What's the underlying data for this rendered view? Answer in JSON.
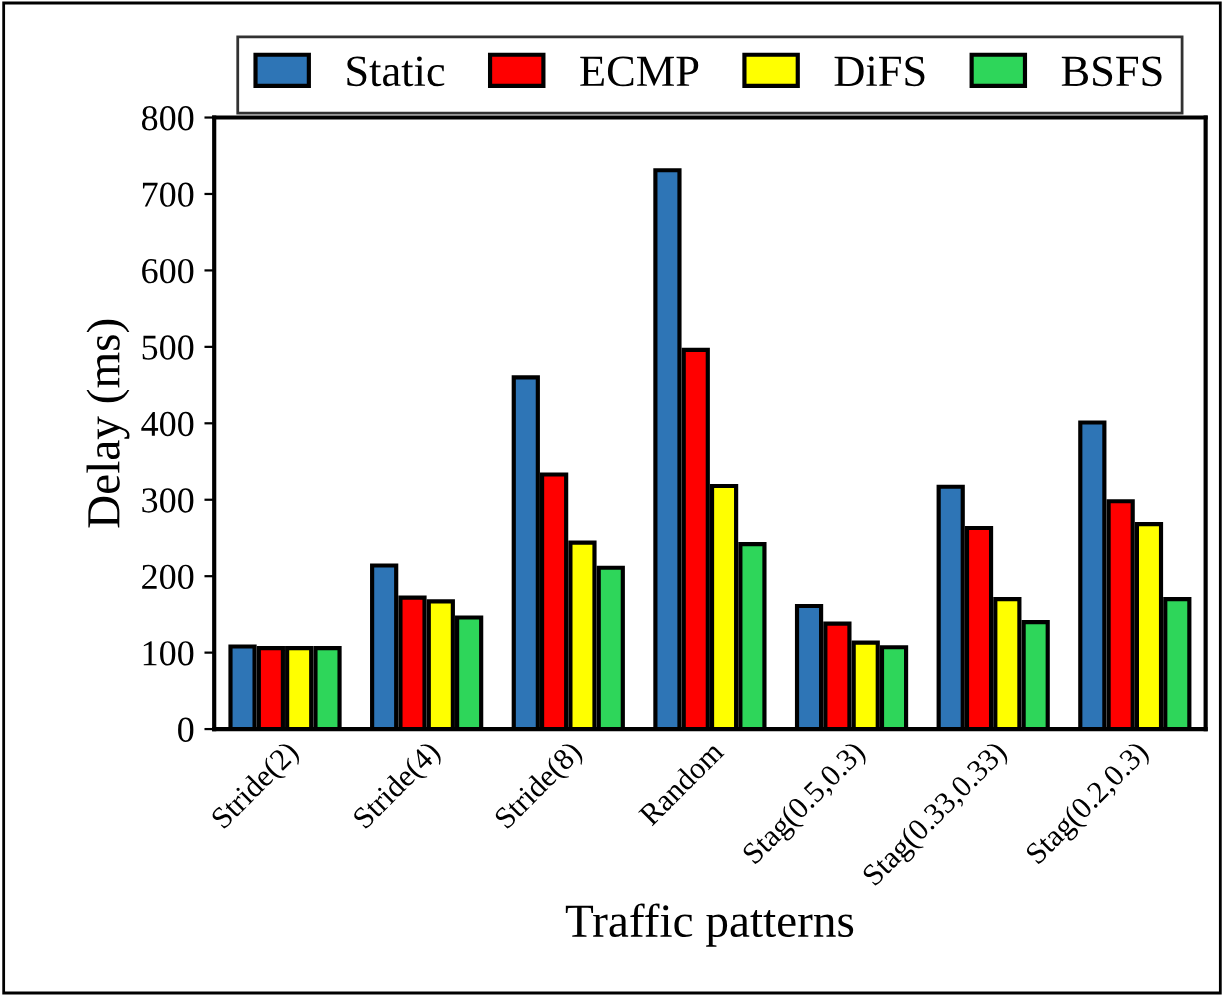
{
  "chart_data": {
    "type": "bar",
    "xlabel": "Traffic patterns",
    "ylabel": "Delay (ms)",
    "categories": [
      "Stride(2)",
      "Stride(4)",
      "Stride(8)",
      "Random",
      "Stag(0.5,0.3)",
      "Stag(0.33,0.33)",
      "Stag(0.2,0.3)"
    ],
    "series": [
      {
        "name": "Static",
        "color": "#2e75b6",
        "values": [
          108,
          214,
          460,
          731,
          161,
          317,
          401
        ]
      },
      {
        "name": "ECMP",
        "color": "#ff0000",
        "values": [
          106,
          172,
          333,
          496,
          138,
          263,
          298
        ]
      },
      {
        "name": "DiFS",
        "color": "#ffff00",
        "values": [
          106,
          167,
          244,
          318,
          113,
          170,
          268
        ]
      },
      {
        "name": "BSFS",
        "color": "#2ed65a",
        "values": [
          106,
          146,
          211,
          242,
          107,
          140,
          170
        ]
      }
    ],
    "ylim": [
      0,
      800
    ],
    "yticks": [
      0,
      100,
      200,
      300,
      400,
      500,
      600,
      700,
      800
    ],
    "grid": false,
    "legend": "top"
  }
}
